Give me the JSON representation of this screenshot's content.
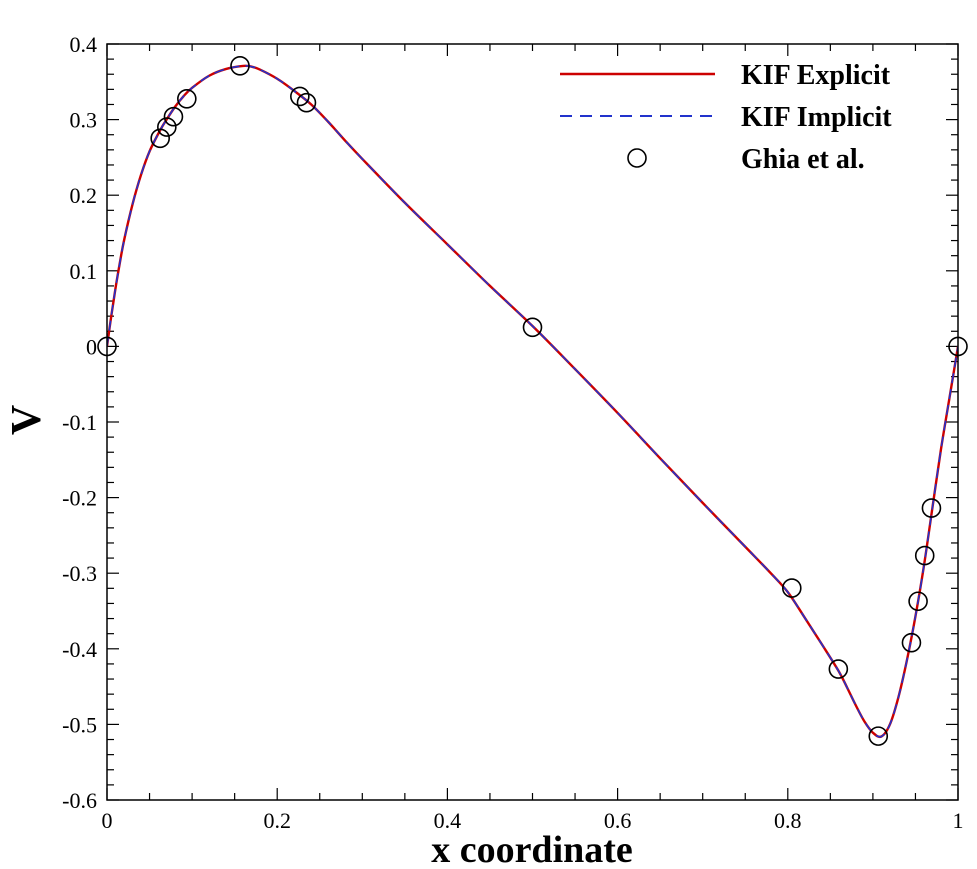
{
  "chart_data": {
    "type": "line",
    "title": "",
    "xlabel": "x coordinate",
    "ylabel": "V",
    "xlim": [
      0,
      1
    ],
    "ylim": [
      -0.6,
      0.4
    ],
    "xticks": [
      0,
      0.2,
      0.4,
      0.6,
      0.8,
      1
    ],
    "xtick_labels": [
      "0",
      "0.2",
      "0.4",
      "0.6",
      "0.8",
      "1"
    ],
    "yticks": [
      0.4,
      0.3,
      0.2,
      0.1,
      0,
      -0.1,
      -0.2,
      -0.3,
      -0.4,
      -0.5,
      -0.6
    ],
    "ytick_labels": [
      "0.4",
      "0.3",
      "0.2",
      "0.1",
      "0",
      "-0.1",
      "-0.2",
      "-0.3",
      "-0.4",
      "-0.5",
      "-0.6"
    ],
    "grid": false,
    "legend_position": "top-right",
    "series": [
      {
        "name": "KIF Explicit",
        "style": "solid",
        "color": "#cc0000",
        "x": [
          0,
          0.005,
          0.01,
          0.015,
          0.02,
          0.03,
          0.04,
          0.05,
          0.0625,
          0.07,
          0.08,
          0.09,
          0.1,
          0.12,
          0.14,
          0.16,
          0.17,
          0.18,
          0.2,
          0.22,
          0.24,
          0.26,
          0.28,
          0.3,
          0.35,
          0.4,
          0.45,
          0.5,
          0.55,
          0.6,
          0.65,
          0.7,
          0.75,
          0.78,
          0.8,
          0.82,
          0.84,
          0.86,
          0.87,
          0.88,
          0.89,
          0.9,
          0.91,
          0.92,
          0.93,
          0.94,
          0.95,
          0.96,
          0.97,
          0.98,
          0.99,
          1.0
        ],
        "y": [
          0,
          0.04,
          0.077,
          0.11,
          0.14,
          0.188,
          0.227,
          0.258,
          0.286,
          0.3,
          0.317,
          0.331,
          0.342,
          0.358,
          0.367,
          0.371,
          0.37,
          0.366,
          0.354,
          0.338,
          0.32,
          0.297,
          0.272,
          0.248,
          0.19,
          0.135,
          0.08,
          0.027,
          -0.03,
          -0.088,
          -0.148,
          -0.207,
          -0.265,
          -0.3,
          -0.325,
          -0.359,
          -0.394,
          -0.43,
          -0.452,
          -0.475,
          -0.496,
          -0.511,
          -0.516,
          -0.5,
          -0.464,
          -0.415,
          -0.357,
          -0.29,
          -0.213,
          -0.136,
          -0.068,
          0
        ]
      },
      {
        "name": "KIF Implicit",
        "style": "dashed",
        "color": "#2233cc",
        "x": [
          0,
          0.005,
          0.01,
          0.015,
          0.02,
          0.03,
          0.04,
          0.05,
          0.0625,
          0.07,
          0.08,
          0.09,
          0.1,
          0.12,
          0.14,
          0.16,
          0.17,
          0.18,
          0.2,
          0.22,
          0.24,
          0.26,
          0.28,
          0.3,
          0.35,
          0.4,
          0.45,
          0.5,
          0.55,
          0.6,
          0.65,
          0.7,
          0.75,
          0.78,
          0.8,
          0.82,
          0.84,
          0.86,
          0.87,
          0.88,
          0.89,
          0.9,
          0.91,
          0.92,
          0.93,
          0.94,
          0.95,
          0.96,
          0.97,
          0.98,
          0.99,
          1.0
        ],
        "y": [
          0,
          0.04,
          0.077,
          0.11,
          0.14,
          0.188,
          0.227,
          0.258,
          0.286,
          0.3,
          0.317,
          0.331,
          0.342,
          0.358,
          0.367,
          0.371,
          0.37,
          0.366,
          0.354,
          0.338,
          0.32,
          0.297,
          0.272,
          0.248,
          0.19,
          0.135,
          0.08,
          0.027,
          -0.03,
          -0.088,
          -0.148,
          -0.207,
          -0.265,
          -0.3,
          -0.325,
          -0.359,
          -0.394,
          -0.43,
          -0.452,
          -0.475,
          -0.496,
          -0.511,
          -0.516,
          -0.5,
          -0.464,
          -0.415,
          -0.357,
          -0.29,
          -0.213,
          -0.136,
          -0.068,
          0
        ]
      },
      {
        "name": "Ghia et al.",
        "style": "markers",
        "color": "#000000",
        "x": [
          0,
          0.0625,
          0.0703,
          0.0781,
          0.0938,
          0.1563,
          0.2266,
          0.2344,
          0.5,
          0.8047,
          0.8594,
          0.9063,
          0.9453,
          0.9531,
          0.9609,
          0.9688,
          1.0
        ],
        "y": [
          0,
          0.2752,
          0.2901,
          0.3039,
          0.3275,
          0.3712,
          0.3307,
          0.3224,
          0.0253,
          -0.3197,
          -0.4268,
          -0.5155,
          -0.3919,
          -0.3371,
          -0.2767,
          -0.2139,
          0
        ]
      }
    ]
  }
}
